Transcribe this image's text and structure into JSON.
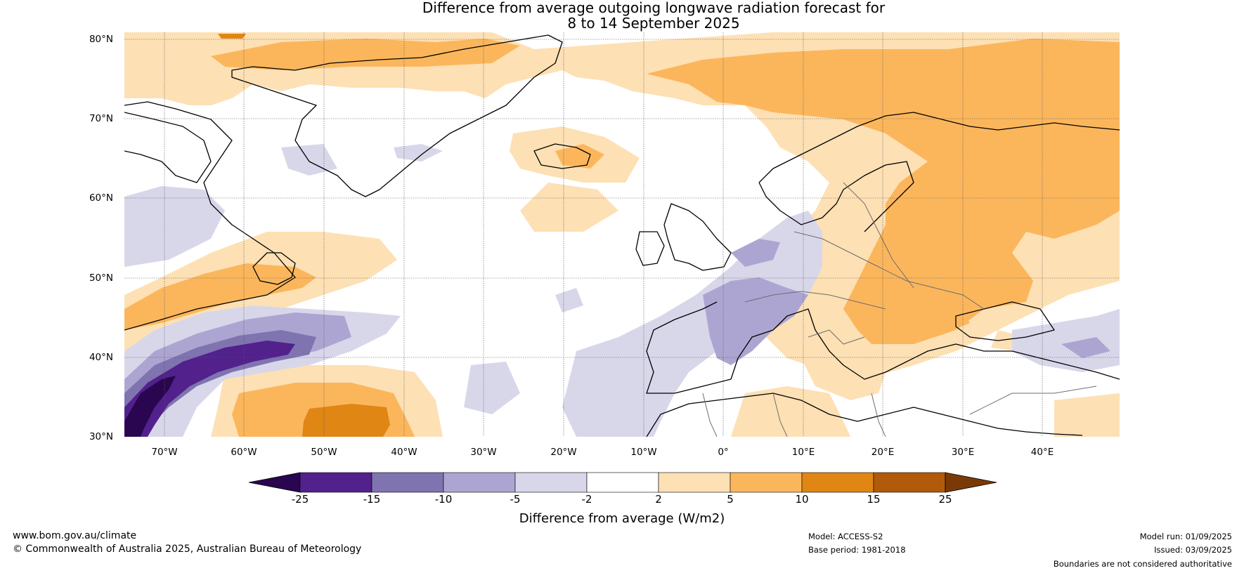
{
  "title": {
    "line1": "Difference from average outgoing longwave radiation forecast for",
    "line2": "8 to 14 September 2025"
  },
  "map": {
    "latitude_labels": [
      "80°N",
      "70°N",
      "60°N",
      "50°N",
      "40°N",
      "30°N"
    ],
    "longitude_labels": [
      "70°W",
      "60°W",
      "50°W",
      "40°W",
      "30°W",
      "20°W",
      "10°W",
      "0°",
      "10°E",
      "20°E",
      "30°E",
      "40°E"
    ],
    "gridlines": "dotted"
  },
  "legend": {
    "label": "Difference from average (W/m2)",
    "ticks": [
      "-25",
      "-15",
      "-10",
      "-5",
      "-2",
      "2",
      "5",
      "10",
      "15",
      "25"
    ],
    "colors": [
      "#2a0650",
      "#52218c",
      "#7f74b0",
      "#ada5d1",
      "#d8d7ea",
      "#ffffff",
      "#fde0b4",
      "#fbb65c",
      "#e08614",
      "#b05a0a",
      "#7a3a08"
    ]
  },
  "footer": {
    "website": "www.bom.gov.au/climate",
    "copyright": "© Commonwealth of Australia 2025, Australian Bureau of Meteorology",
    "model": "Model: ACCESS-S2",
    "base_period": "Base period: 1981-2018",
    "model_run": "Model run: 01/09/2025",
    "issued": "Issued: 03/09/2025",
    "disclaimer": "Boundaries are not considered authoritative"
  }
}
